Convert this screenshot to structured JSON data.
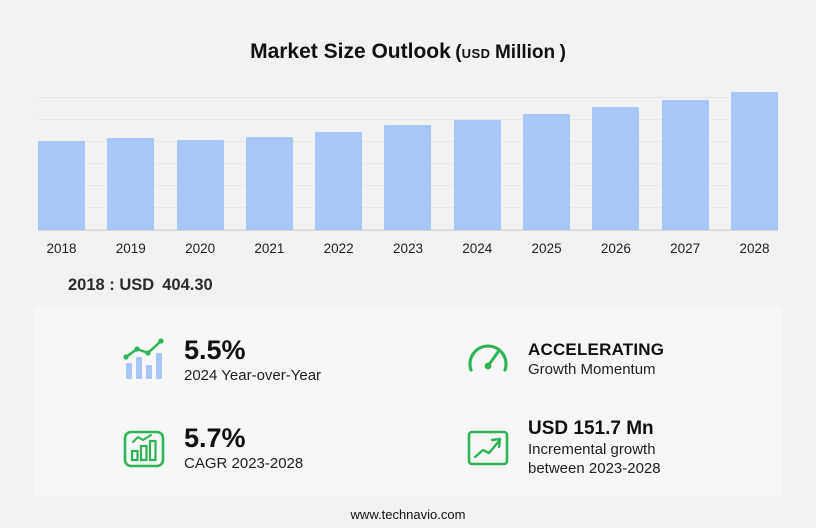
{
  "title": {
    "main": "Market Size Outlook",
    "paren_open": "(",
    "currency": "USD",
    "unit": "Million",
    "paren_close": ")"
  },
  "chart_data": {
    "type": "bar",
    "title": "Market Size Outlook (USD Million)",
    "categories": [
      "2018",
      "2019",
      "2020",
      "2021",
      "2022",
      "2023",
      "2024",
      "2025",
      "2026",
      "2027",
      "2028"
    ],
    "values": [
      404.3,
      420,
      408,
      424,
      447,
      475.4,
      501.5,
      529.1,
      558.2,
      588.9,
      627.1
    ],
    "ylim": [
      0,
      700
    ],
    "bar_color": "#a8c7f8",
    "grid": "horizontal",
    "legend": "none",
    "annotation": "2018 : USD 404.30"
  },
  "annotation": {
    "label": "2018 : USD",
    "value": "404.30"
  },
  "stats": [
    {
      "icon": "yoy-bars-trend-icon",
      "value": "5.5%",
      "label": "2024 Year-over-Year"
    },
    {
      "icon": "speedometer-icon",
      "value": "ACCELERATING",
      "label": "Growth Momentum"
    },
    {
      "icon": "cagr-chart-icon",
      "value": "5.7%",
      "label": "CAGR 2023-2028"
    },
    {
      "icon": "incremental-growth-icon",
      "value": "USD 151.7 Mn",
      "label": "Incremental growth between 2023-2028"
    }
  ],
  "footer": {
    "url": "www.technavio.com"
  },
  "colors": {
    "accent_green": "#2eb457",
    "bar_blue": "#a8c7f8",
    "background": "#f2f2f2",
    "panel": "#f7f7f7"
  }
}
